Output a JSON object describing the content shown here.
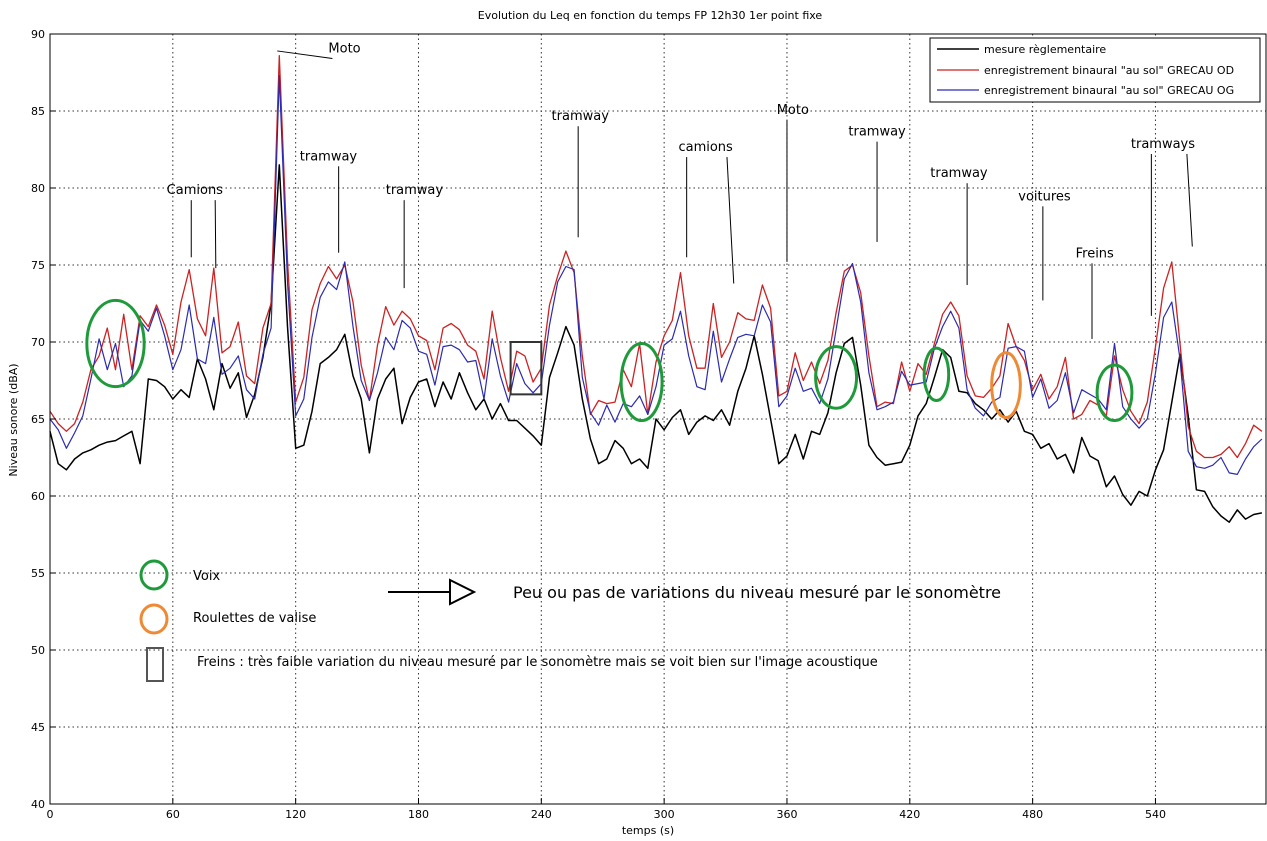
{
  "chart_data": {
    "type": "line",
    "title": "Evolution du Leq  en fonction du temps FP 12h30 1er point fixe",
    "xlabel": "temps (s)",
    "ylabel": "Niveau sonore (dBA)",
    "xlim": [
      0,
      594
    ],
    "ylim": [
      40,
      90
    ],
    "xticks": [
      0,
      60,
      120,
      180,
      240,
      300,
      360,
      420,
      480,
      540
    ],
    "yticks": [
      40,
      45,
      50,
      55,
      60,
      65,
      70,
      75,
      80,
      85,
      90
    ],
    "grid": true,
    "legend_position": "top-right",
    "series": [
      {
        "name": "mesure règlementaire",
        "color": "#000000",
        "x": [
          0,
          4,
          8,
          12,
          16,
          20,
          24,
          28,
          32,
          36,
          40,
          44,
          48,
          52,
          56,
          60,
          64,
          68,
          72,
          76,
          80,
          84,
          88,
          92,
          96,
          100,
          104,
          108,
          112,
          116,
          120,
          124,
          128,
          132,
          136,
          140,
          144,
          148,
          152,
          156,
          160,
          164,
          168,
          172,
          176,
          180,
          184,
          188,
          192,
          196,
          200,
          204,
          208,
          212,
          216,
          220,
          224,
          228,
          232,
          236,
          240,
          244,
          248,
          252,
          256,
          260,
          264,
          268,
          272,
          276,
          280,
          284,
          288,
          292,
          296,
          300,
          304,
          308,
          312,
          316,
          320,
          324,
          328,
          332,
          336,
          340,
          344,
          348,
          352,
          356,
          360,
          364,
          368,
          372,
          376,
          380,
          384,
          388,
          392,
          396,
          400,
          404,
          408,
          412,
          416,
          420,
          424,
          428,
          432,
          436,
          440,
          444,
          448,
          452,
          456,
          460,
          464,
          468,
          472,
          476,
          480,
          484,
          488,
          492,
          496,
          500,
          504,
          508,
          512,
          516,
          520,
          524,
          528,
          532,
          536,
          540,
          544,
          548,
          552,
          556,
          560,
          564,
          568,
          572,
          576,
          580,
          584,
          588,
          592
        ],
        "values": [
          64.2,
          62.1,
          61.7,
          62.4,
          62.8,
          63.0,
          63.3,
          63.5,
          63.6,
          63.9,
          64.2,
          62.1,
          67.6,
          67.5,
          67.1,
          66.3,
          66.9,
          66.4,
          68.9,
          67.6,
          65.6,
          68.6,
          67.0,
          68.0,
          65.1,
          66.6,
          69.0,
          72.5,
          81.5,
          71.0,
          63.1,
          63.3,
          65.5,
          68.6,
          69.0,
          69.5,
          70.5,
          67.8,
          66.3,
          62.8,
          66.3,
          67.6,
          68.3,
          64.7,
          66.4,
          67.4,
          67.6,
          65.8,
          67.4,
          66.3,
          68.0,
          66.7,
          65.6,
          66.3,
          65.0,
          66.0,
          64.9,
          64.9,
          64.4,
          63.9,
          63.3,
          67.7,
          69.3,
          71.0,
          69.8,
          66.3,
          63.7,
          62.1,
          62.4,
          63.6,
          63.1,
          62.1,
          62.4,
          61.8,
          65.0,
          64.3,
          65.1,
          65.6,
          64.0,
          64.8,
          65.2,
          64.9,
          65.6,
          64.6,
          66.8,
          68.3,
          70.4,
          67.9,
          65.0,
          62.1,
          62.6,
          64.0,
          62.4,
          64.2,
          64.0,
          65.4,
          68.0,
          69.9,
          70.3,
          67.2,
          63.3,
          62.5,
          62.0,
          62.1,
          62.2,
          63.3,
          65.2,
          66.0,
          67.7,
          69.5,
          69.0,
          66.8,
          66.7,
          66.0,
          65.6,
          65.0,
          65.6,
          64.8,
          65.5,
          64.2,
          64.0,
          63.1,
          63.4,
          62.4,
          62.7,
          61.5,
          63.8,
          62.6,
          62.3,
          60.6,
          61.3,
          60.1,
          59.4,
          60.3,
          60.0,
          61.7,
          63.0,
          66.1,
          69.2,
          65.2,
          60.4,
          60.3,
          59.3,
          58.7,
          58.3,
          59.1,
          58.5,
          58.8,
          58.9
        ],
        "stroke_width": 1.5
      },
      {
        "name": "enregistrement binaural \"au sol\" GRECAU OD",
        "color": "#cc2222",
        "x": [
          0,
          4,
          8,
          12,
          16,
          20,
          24,
          28,
          32,
          36,
          40,
          44,
          48,
          52,
          56,
          60,
          64,
          68,
          72,
          76,
          80,
          84,
          88,
          92,
          96,
          100,
          104,
          108,
          112,
          116,
          120,
          124,
          128,
          132,
          136,
          140,
          144,
          148,
          152,
          156,
          160,
          164,
          168,
          172,
          176,
          180,
          184,
          188,
          192,
          196,
          200,
          204,
          208,
          212,
          216,
          220,
          224,
          228,
          232,
          236,
          240,
          244,
          248,
          252,
          256,
          260,
          264,
          268,
          272,
          276,
          280,
          284,
          288,
          292,
          296,
          300,
          304,
          308,
          312,
          316,
          320,
          324,
          328,
          332,
          336,
          340,
          344,
          348,
          352,
          356,
          360,
          364,
          368,
          372,
          376,
          380,
          384,
          388,
          392,
          396,
          400,
          404,
          408,
          412,
          416,
          420,
          424,
          428,
          432,
          436,
          440,
          444,
          448,
          452,
          456,
          460,
          464,
          468,
          472,
          476,
          480,
          484,
          488,
          492,
          496,
          500,
          504,
          508,
          512,
          516,
          520,
          524,
          528,
          532,
          536,
          540,
          544,
          548,
          552,
          556,
          560,
          564,
          568,
          572,
          576,
          580,
          584,
          588,
          592
        ],
        "values": [
          65.5,
          64.7,
          64.2,
          64.7,
          66.1,
          68.2,
          69.1,
          70.9,
          68.2,
          71.8,
          68.2,
          71.7,
          71.0,
          72.4,
          71.1,
          69.2,
          72.6,
          74.7,
          71.5,
          70.4,
          74.8,
          69.3,
          69.7,
          71.3,
          67.8,
          67.3,
          70.9,
          72.5,
          88.6,
          75.3,
          66.1,
          67.7,
          72.1,
          73.8,
          74.9,
          74.1,
          75.0,
          72.6,
          68.5,
          66.2,
          69.8,
          72.3,
          71.1,
          72.0,
          71.5,
          70.4,
          70.1,
          68.2,
          70.9,
          71.2,
          70.8,
          69.8,
          69.4,
          67.6,
          72.0,
          69.0,
          66.8,
          69.4,
          69.1,
          67.4,
          68.3,
          72.4,
          74.3,
          75.9,
          74.5,
          69.1,
          65.3,
          66.2,
          66.0,
          66.1,
          68.2,
          67.1,
          69.9,
          65.3,
          68.7,
          70.4,
          71.4,
          74.5,
          70.4,
          68.3,
          68.3,
          72.5,
          69.0,
          70.0,
          71.9,
          71.5,
          71.4,
          73.7,
          72.2,
          66.5,
          66.8,
          69.3,
          67.5,
          68.7,
          67.3,
          68.8,
          71.9,
          74.6,
          75.0,
          73.2,
          69.1,
          65.8,
          66.1,
          66.0,
          68.7,
          66.8,
          68.6,
          67.9,
          69.9,
          71.8,
          72.6,
          71.7,
          67.8,
          66.5,
          66.4,
          67.0,
          67.8,
          71.2,
          69.7,
          68.8,
          66.9,
          67.9,
          66.3,
          67.1,
          69.0,
          65.0,
          65.3,
          66.2,
          65.9,
          65.2,
          69.1,
          66.9,
          65.5,
          64.7,
          66.1,
          69.7,
          73.5,
          75.2,
          69.9,
          64.5,
          62.9,
          62.5,
          62.5,
          62.7,
          63.2,
          62.5,
          63.4,
          64.6,
          64.2
        ],
        "stroke_width": 1.3
      },
      {
        "name": "enregistrement binaural \"au sol\" GRECAU OG",
        "color": "#2b2bb0",
        "x": [
          0,
          4,
          8,
          12,
          16,
          20,
          24,
          28,
          32,
          36,
          40,
          44,
          48,
          52,
          56,
          60,
          64,
          68,
          72,
          76,
          80,
          84,
          88,
          92,
          96,
          100,
          104,
          108,
          112,
          116,
          120,
          124,
          128,
          132,
          136,
          140,
          144,
          148,
          152,
          156,
          160,
          164,
          168,
          172,
          176,
          180,
          184,
          188,
          192,
          196,
          200,
          204,
          208,
          212,
          216,
          220,
          224,
          228,
          232,
          236,
          240,
          244,
          248,
          252,
          256,
          260,
          264,
          268,
          272,
          276,
          280,
          284,
          288,
          292,
          296,
          300,
          304,
          308,
          312,
          316,
          320,
          324,
          328,
          332,
          336,
          340,
          344,
          348,
          352,
          356,
          360,
          364,
          368,
          372,
          376,
          380,
          384,
          388,
          392,
          396,
          400,
          404,
          408,
          412,
          416,
          420,
          424,
          428,
          432,
          436,
          440,
          444,
          448,
          452,
          456,
          460,
          464,
          468,
          472,
          476,
          480,
          484,
          488,
          492,
          496,
          500,
          504,
          508,
          512,
          516,
          520,
          524,
          528,
          532,
          536,
          540,
          544,
          548,
          552,
          556,
          560,
          564,
          568,
          572,
          576,
          580,
          584,
          588,
          592
        ],
        "values": [
          65.0,
          64.3,
          63.1,
          64.1,
          65.2,
          67.6,
          70.2,
          68.2,
          69.9,
          67.1,
          67.8,
          71.4,
          70.7,
          72.2,
          70.4,
          68.2,
          69.5,
          72.4,
          68.9,
          68.6,
          71.6,
          67.9,
          68.3,
          69.1,
          66.9,
          66.3,
          69.2,
          70.9,
          87.3,
          73.9,
          65.2,
          66.3,
          70.3,
          72.9,
          73.9,
          73.4,
          75.2,
          71.0,
          67.5,
          66.2,
          68.0,
          70.3,
          69.5,
          71.4,
          70.9,
          69.4,
          69.2,
          67.2,
          69.7,
          69.8,
          69.5,
          68.7,
          68.8,
          66.3,
          70.2,
          67.8,
          66.1,
          68.6,
          67.3,
          66.7,
          67.3,
          71.1,
          73.9,
          74.9,
          74.7,
          67.7,
          65.4,
          64.6,
          65.9,
          64.8,
          66.0,
          65.8,
          66.5,
          65.3,
          67.1,
          69.8,
          70.2,
          72.0,
          69.1,
          67.1,
          66.9,
          70.7,
          67.4,
          68.9,
          70.3,
          70.5,
          70.4,
          72.4,
          71.3,
          65.8,
          66.5,
          68.3,
          66.8,
          67.0,
          66.0,
          67.6,
          70.8,
          74.1,
          75.1,
          72.6,
          68.0,
          65.6,
          65.8,
          66.1,
          68.1,
          67.2,
          67.3,
          67.4,
          69.6,
          71.0,
          72.0,
          70.9,
          66.9,
          65.7,
          65.2,
          66.1,
          66.4,
          69.6,
          69.7,
          69.4,
          66.4,
          67.6,
          65.7,
          66.2,
          68.0,
          65.4,
          66.9,
          66.6,
          66.3,
          65.6,
          69.9,
          65.8,
          65.0,
          64.4,
          65.0,
          68.0,
          71.6,
          72.6,
          68.9,
          62.9,
          61.9,
          61.8,
          62.0,
          62.5,
          61.5,
          61.4,
          62.4,
          63.2,
          63.7
        ],
        "stroke_width": 1.2
      }
    ],
    "annotations": [
      {
        "text": "Camions",
        "x": 57,
        "y": 79.6,
        "arrows": [
          [
            69,
            75.5
          ],
          [
            81,
            74.8
          ]
        ]
      },
      {
        "text": "Moto",
        "x": 136,
        "y": 88.8,
        "arrows": [
          [
            111,
            88.9
          ]
        ]
      },
      {
        "text": "tramway",
        "x": 122,
        "y": 81.8,
        "arrows": [
          [
            141,
            75.8
          ]
        ]
      },
      {
        "text": "tramway",
        "x": 164,
        "y": 79.6,
        "arrows": [
          [
            173,
            73.5
          ]
        ]
      },
      {
        "text": "tramway",
        "x": 245,
        "y": 84.4,
        "arrows": [
          [
            258,
            76.8
          ]
        ]
      },
      {
        "text": "camions",
        "x": 307,
        "y": 82.4,
        "arrows": [
          [
            311,
            75.5
          ],
          [
            334,
            73.8
          ]
        ]
      },
      {
        "text": "Moto",
        "x": 355,
        "y": 84.8,
        "arrows": [
          [
            360,
            75.2
          ]
        ]
      },
      {
        "text": "tramway",
        "x": 390,
        "y": 83.4,
        "arrows": [
          [
            404,
            76.5
          ]
        ]
      },
      {
        "text": "tramway",
        "x": 430,
        "y": 80.7,
        "arrows": [
          [
            448,
            73.7
          ]
        ]
      },
      {
        "text": "voitures",
        "x": 473,
        "y": 79.2,
        "arrows": [
          [
            485,
            72.7
          ]
        ]
      },
      {
        "text": "Freins",
        "x": 501,
        "y": 75.5,
        "arrows": [
          [
            509,
            70.2
          ]
        ]
      },
      {
        "text": "tramways",
        "x": 528,
        "y": 82.6,
        "arrows": [
          [
            538,
            71.7
          ],
          [
            558,
            76.2
          ]
        ]
      }
    ],
    "markers": [
      {
        "kind": "ellipse",
        "color": "#1f9a3a",
        "x": 32,
        "y": 69.9,
        "rx": 14,
        "ry": 2.8
      },
      {
        "kind": "ellipse",
        "color": "#1f9a3a",
        "x": 289,
        "y": 67.4,
        "rx": 10,
        "ry": 2.5
      },
      {
        "kind": "ellipse",
        "color": "#1f9a3a",
        "x": 384,
        "y": 67.7,
        "rx": 10,
        "ry": 2.0
      },
      {
        "kind": "ellipse",
        "color": "#1f9a3a",
        "x": 433,
        "y": 67.9,
        "rx": 6,
        "ry": 1.7
      },
      {
        "kind": "ellipse",
        "color": "#1f9a3a",
        "x": 520,
        "y": 66.7,
        "rx": 8.5,
        "ry": 1.8
      },
      {
        "kind": "ellipse",
        "color": "#ee8a33",
        "x": 467,
        "y": 67.2,
        "rx": 7,
        "ry": 2.1
      },
      {
        "kind": "rect",
        "color": "#333333",
        "x0": 225,
        "x1": 240,
        "y0": 66.6,
        "y1": 70.0
      }
    ]
  },
  "key": {
    "voix_label": "Voix",
    "voix_color": "#1f9a3a",
    "roulettes_label": "Roulettes de valise",
    "roulettes_color": "#ee8a33",
    "freins_label": "Freins : très faible variation du niveau mesuré par le sonomètre mais se voit bien sur l'image acoustique",
    "freins_color": "#444444",
    "note": "Peu ou pas de variations du niveau mesuré par le sonomètre"
  }
}
